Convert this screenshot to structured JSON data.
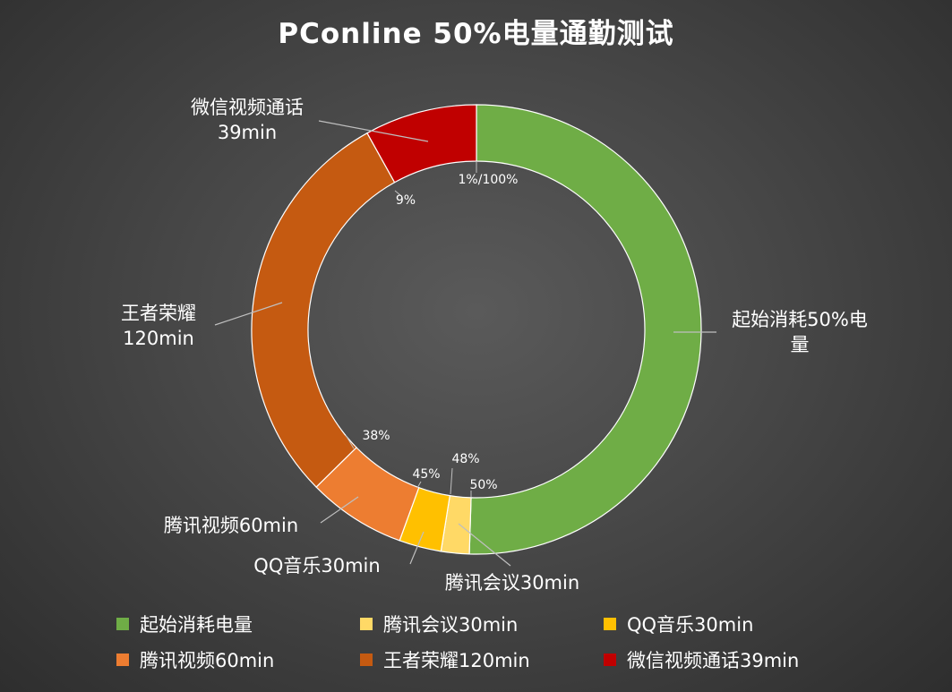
{
  "chart_data": {
    "type": "pie",
    "donut": true,
    "title": "PConline 50%电量通勤测试",
    "slices": [
      {
        "legend": "起始消耗电量",
        "label_lines": [
          "起始消耗50%电",
          "量"
        ],
        "value": 50,
        "color": "#6fad46"
      },
      {
        "legend": "腾讯会议30min",
        "label_lines": [
          "腾讯会议30min"
        ],
        "value": 2,
        "color": "#ffd966"
      },
      {
        "legend": "QQ音乐30min",
        "label_lines": [
          "QQ音乐30min"
        ],
        "value": 3,
        "color": "#ffc000"
      },
      {
        "legend": "腾讯视频60min",
        "label_lines": [
          "腾讯视频60min"
        ],
        "value": 7,
        "color": "#ed7d31"
      },
      {
        "legend": "王者荣耀120min",
        "label_lines": [
          "王者荣耀",
          "120min"
        ],
        "value": 29,
        "color": "#c55a11"
      },
      {
        "legend": "微信视频通话39min",
        "label_lines": [
          "微信视频通话",
          "39min"
        ],
        "value": 8,
        "color": "#c00000"
      }
    ],
    "boundary_labels": [
      "1%/100%",
      "50%",
      "48%",
      "45%",
      "38%",
      "9%"
    ],
    "legend_position": "bottom"
  }
}
